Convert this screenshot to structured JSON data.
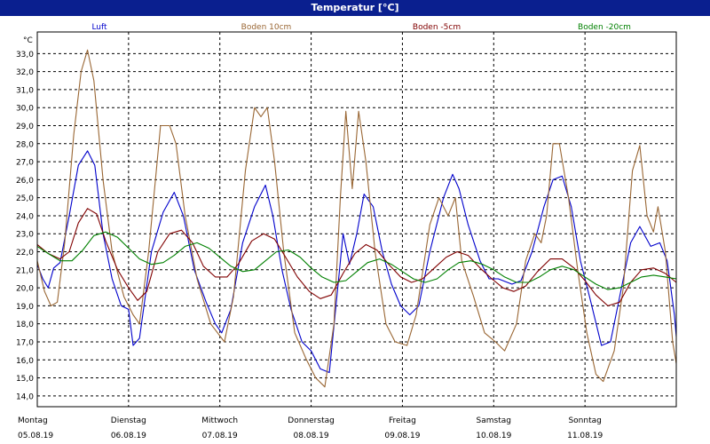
{
  "window": {
    "title": "Temperatur [°C]"
  },
  "chart_data": {
    "type": "line",
    "title": "Temperatur [°C]",
    "ylabel": "°C",
    "ylim": [
      13.4,
      34.2
    ],
    "yticks": [
      14.0,
      15.0,
      16.0,
      17.0,
      18.0,
      19.0,
      20.0,
      21.0,
      22.0,
      23.0,
      24.0,
      25.0,
      26.0,
      27.0,
      28.0,
      29.0,
      30.0,
      31.0,
      32.0,
      33.0
    ],
    "ytick_labels": [
      "14,0",
      "15,0",
      "16,0",
      "17,0",
      "18,0",
      "19,0",
      "20,0",
      "21,0",
      "22,0",
      "23,0",
      "24,0",
      "25,0",
      "26,0",
      "27,0",
      "28,0",
      "29,0",
      "30,0",
      "31,0",
      "32,0",
      "33,0"
    ],
    "x_unit": "days since 05.08.19 00:00",
    "xlim": [
      0,
      7
    ],
    "days": [
      {
        "weekday": "Montag",
        "date": "05.08.19"
      },
      {
        "weekday": "Dienstag",
        "date": "06.08.19"
      },
      {
        "weekday": "Mittwoch",
        "date": "07.08.19"
      },
      {
        "weekday": "Donnerstag",
        "date": "08.08.19"
      },
      {
        "weekday": "Freitag",
        "date": "09.08.19"
      },
      {
        "weekday": "Samstag",
        "date": "10.08.19"
      },
      {
        "weekday": "Sonntag",
        "date": "11.08.19"
      }
    ],
    "grid": true,
    "legend_position": "top",
    "series": [
      {
        "name": "Luft",
        "color": "#0000cc",
        "points": [
          [
            0.0,
            21.3
          ],
          [
            0.06,
            20.5
          ],
          [
            0.12,
            20.0
          ],
          [
            0.18,
            21.1
          ],
          [
            0.25,
            21.4
          ],
          [
            0.35,
            24.0
          ],
          [
            0.45,
            26.8
          ],
          [
            0.55,
            27.6
          ],
          [
            0.63,
            26.8
          ],
          [
            0.72,
            23.0
          ],
          [
            0.82,
            20.5
          ],
          [
            0.92,
            19.0
          ],
          [
            1.0,
            18.8
          ],
          [
            1.05,
            16.8
          ],
          [
            1.12,
            17.2
          ],
          [
            1.25,
            22.0
          ],
          [
            1.38,
            24.2
          ],
          [
            1.5,
            25.3
          ],
          [
            1.6,
            24.0
          ],
          [
            1.72,
            21.0
          ],
          [
            1.85,
            19.2
          ],
          [
            1.95,
            18.0
          ],
          [
            2.02,
            17.5
          ],
          [
            2.12,
            18.8
          ],
          [
            2.25,
            22.5
          ],
          [
            2.38,
            24.5
          ],
          [
            2.5,
            25.7
          ],
          [
            2.58,
            24.0
          ],
          [
            2.68,
            21.0
          ],
          [
            2.78,
            18.8
          ],
          [
            2.9,
            17.0
          ],
          [
            3.0,
            16.5
          ],
          [
            3.1,
            15.5
          ],
          [
            3.2,
            15.3
          ],
          [
            3.35,
            23.0
          ],
          [
            3.42,
            21.3
          ],
          [
            3.5,
            23.0
          ],
          [
            3.58,
            25.2
          ],
          [
            3.68,
            24.5
          ],
          [
            3.78,
            22.0
          ],
          [
            3.88,
            20.2
          ],
          [
            3.98,
            19.0
          ],
          [
            4.08,
            18.5
          ],
          [
            4.18,
            19.0
          ],
          [
            4.3,
            22.0
          ],
          [
            4.45,
            25.0
          ],
          [
            4.55,
            26.3
          ],
          [
            4.62,
            25.5
          ],
          [
            4.72,
            23.5
          ],
          [
            4.85,
            21.5
          ],
          [
            4.95,
            20.5
          ],
          [
            5.05,
            20.5
          ],
          [
            5.2,
            20.2
          ],
          [
            5.3,
            20.4
          ],
          [
            5.42,
            22.0
          ],
          [
            5.55,
            24.5
          ],
          [
            5.65,
            26.0
          ],
          [
            5.75,
            26.2
          ],
          [
            5.85,
            24.5
          ],
          [
            5.95,
            21.5
          ],
          [
            6.05,
            19.5
          ],
          [
            6.18,
            16.8
          ],
          [
            6.28,
            17.0
          ],
          [
            6.38,
            19.5
          ],
          [
            6.5,
            22.5
          ],
          [
            6.6,
            23.4
          ],
          [
            6.72,
            22.3
          ],
          [
            6.82,
            22.5
          ],
          [
            6.9,
            21.5
          ],
          [
            6.98,
            18.5
          ],
          [
            7.0,
            17.3
          ]
        ]
      },
      {
        "name": "Boden 10cm",
        "color": "#996633",
        "points": [
          [
            0.0,
            21.5
          ],
          [
            0.08,
            19.8
          ],
          [
            0.15,
            19.0
          ],
          [
            0.22,
            19.2
          ],
          [
            0.3,
            22.5
          ],
          [
            0.4,
            28.5
          ],
          [
            0.48,
            32.0
          ],
          [
            0.55,
            33.2
          ],
          [
            0.62,
            31.5
          ],
          [
            0.72,
            26.0
          ],
          [
            0.82,
            22.0
          ],
          [
            0.95,
            19.5
          ],
          [
            1.05,
            18.5
          ],
          [
            1.12,
            18.0
          ],
          [
            1.22,
            22.0
          ],
          [
            1.35,
            29.0
          ],
          [
            1.45,
            29.0
          ],
          [
            1.52,
            28.0
          ],
          [
            1.62,
            24.0
          ],
          [
            1.75,
            20.5
          ],
          [
            1.9,
            18.0
          ],
          [
            2.05,
            17.0
          ],
          [
            2.15,
            19.5
          ],
          [
            2.28,
            26.5
          ],
          [
            2.38,
            30.0
          ],
          [
            2.45,
            29.5
          ],
          [
            2.52,
            30.0
          ],
          [
            2.6,
            27.0
          ],
          [
            2.7,
            22.0
          ],
          [
            2.82,
            17.5
          ],
          [
            2.95,
            16.0
          ],
          [
            3.05,
            15.0
          ],
          [
            3.15,
            14.5
          ],
          [
            3.25,
            18.0
          ],
          [
            3.32,
            25.0
          ],
          [
            3.38,
            29.8
          ],
          [
            3.45,
            25.5
          ],
          [
            3.52,
            29.8
          ],
          [
            3.6,
            27.0
          ],
          [
            3.7,
            22.0
          ],
          [
            3.82,
            18.0
          ],
          [
            3.92,
            17.0
          ],
          [
            4.05,
            16.8
          ],
          [
            4.15,
            18.5
          ],
          [
            4.3,
            23.5
          ],
          [
            4.4,
            25.0
          ],
          [
            4.5,
            24.0
          ],
          [
            4.58,
            25.0
          ],
          [
            4.65,
            21.5
          ],
          [
            4.78,
            19.5
          ],
          [
            4.9,
            17.5
          ],
          [
            5.02,
            17.0
          ],
          [
            5.12,
            16.5
          ],
          [
            5.25,
            18.0
          ],
          [
            5.35,
            21.5
          ],
          [
            5.45,
            23.0
          ],
          [
            5.52,
            22.5
          ],
          [
            5.58,
            24.0
          ],
          [
            5.65,
            28.0
          ],
          [
            5.72,
            28.0
          ],
          [
            5.82,
            25.0
          ],
          [
            5.92,
            21.0
          ],
          [
            6.02,
            17.5
          ],
          [
            6.12,
            15.2
          ],
          [
            6.2,
            14.8
          ],
          [
            6.32,
            16.5
          ],
          [
            6.42,
            20.0
          ],
          [
            6.52,
            26.5
          ],
          [
            6.6,
            27.9
          ],
          [
            6.68,
            24.0
          ],
          [
            6.75,
            23.1
          ],
          [
            6.8,
            24.5
          ],
          [
            6.88,
            22.0
          ],
          [
            6.96,
            17.0
          ],
          [
            7.0,
            15.8
          ]
        ]
      },
      {
        "name": "Boden -5cm",
        "color": "#800000",
        "points": [
          [
            0.0,
            22.4
          ],
          [
            0.12,
            21.9
          ],
          [
            0.25,
            21.6
          ],
          [
            0.35,
            22.0
          ],
          [
            0.45,
            23.6
          ],
          [
            0.55,
            24.4
          ],
          [
            0.65,
            24.1
          ],
          [
            0.75,
            22.6
          ],
          [
            0.88,
            21.0
          ],
          [
            1.0,
            20.0
          ],
          [
            1.1,
            19.3
          ],
          [
            1.2,
            19.8
          ],
          [
            1.32,
            22.0
          ],
          [
            1.45,
            23.0
          ],
          [
            1.58,
            23.2
          ],
          [
            1.7,
            22.5
          ],
          [
            1.82,
            21.2
          ],
          [
            1.95,
            20.6
          ],
          [
            2.08,
            20.6
          ],
          [
            2.2,
            21.3
          ],
          [
            2.35,
            22.6
          ],
          [
            2.48,
            23.0
          ],
          [
            2.6,
            22.7
          ],
          [
            2.72,
            21.7
          ],
          [
            2.85,
            20.6
          ],
          [
            2.98,
            19.8
          ],
          [
            3.1,
            19.4
          ],
          [
            3.22,
            19.6
          ],
          [
            3.35,
            20.8
          ],
          [
            3.48,
            21.9
          ],
          [
            3.6,
            22.4
          ],
          [
            3.72,
            22.1
          ],
          [
            3.85,
            21.3
          ],
          [
            3.98,
            20.6
          ],
          [
            4.1,
            20.3
          ],
          [
            4.22,
            20.5
          ],
          [
            4.35,
            21.1
          ],
          [
            4.48,
            21.7
          ],
          [
            4.6,
            22.0
          ],
          [
            4.72,
            21.8
          ],
          [
            4.85,
            21.1
          ],
          [
            4.98,
            20.5
          ],
          [
            5.1,
            20.0
          ],
          [
            5.22,
            19.8
          ],
          [
            5.35,
            20.1
          ],
          [
            5.48,
            20.9
          ],
          [
            5.62,
            21.6
          ],
          [
            5.75,
            21.6
          ],
          [
            5.88,
            21.1
          ],
          [
            6.0,
            20.4
          ],
          [
            6.12,
            19.6
          ],
          [
            6.25,
            19.0
          ],
          [
            6.38,
            19.2
          ],
          [
            6.5,
            20.3
          ],
          [
            6.62,
            21.0
          ],
          [
            6.75,
            21.1
          ],
          [
            6.88,
            20.8
          ],
          [
            7.0,
            20.3
          ]
        ]
      },
      {
        "name": "Boden -20cm",
        "color": "#008000",
        "points": [
          [
            0.0,
            22.3
          ],
          [
            0.12,
            21.9
          ],
          [
            0.25,
            21.5
          ],
          [
            0.38,
            21.5
          ],
          [
            0.5,
            22.1
          ],
          [
            0.62,
            22.9
          ],
          [
            0.75,
            23.1
          ],
          [
            0.88,
            22.8
          ],
          [
            1.0,
            22.2
          ],
          [
            1.12,
            21.6
          ],
          [
            1.25,
            21.3
          ],
          [
            1.38,
            21.4
          ],
          [
            1.5,
            21.8
          ],
          [
            1.62,
            22.3
          ],
          [
            1.75,
            22.5
          ],
          [
            1.88,
            22.2
          ],
          [
            2.0,
            21.7
          ],
          [
            2.12,
            21.2
          ],
          [
            2.25,
            20.9
          ],
          [
            2.38,
            21.0
          ],
          [
            2.5,
            21.5
          ],
          [
            2.62,
            22.0
          ],
          [
            2.75,
            22.1
          ],
          [
            2.88,
            21.7
          ],
          [
            3.0,
            21.1
          ],
          [
            3.12,
            20.6
          ],
          [
            3.25,
            20.3
          ],
          [
            3.38,
            20.4
          ],
          [
            3.5,
            20.9
          ],
          [
            3.62,
            21.4
          ],
          [
            3.75,
            21.6
          ],
          [
            3.88,
            21.3
          ],
          [
            4.0,
            20.9
          ],
          [
            4.12,
            20.5
          ],
          [
            4.25,
            20.3
          ],
          [
            4.38,
            20.5
          ],
          [
            4.5,
            21.0
          ],
          [
            4.62,
            21.4
          ],
          [
            4.75,
            21.5
          ],
          [
            4.88,
            21.3
          ],
          [
            5.0,
            21.0
          ],
          [
            5.12,
            20.6
          ],
          [
            5.25,
            20.3
          ],
          [
            5.38,
            20.3
          ],
          [
            5.5,
            20.6
          ],
          [
            5.62,
            21.0
          ],
          [
            5.75,
            21.2
          ],
          [
            5.88,
            21.0
          ],
          [
            6.0,
            20.6
          ],
          [
            6.12,
            20.2
          ],
          [
            6.25,
            19.9
          ],
          [
            6.38,
            20.0
          ],
          [
            6.5,
            20.3
          ],
          [
            6.62,
            20.6
          ],
          [
            6.75,
            20.7
          ],
          [
            6.88,
            20.6
          ],
          [
            7.0,
            20.5
          ]
        ]
      }
    ]
  }
}
